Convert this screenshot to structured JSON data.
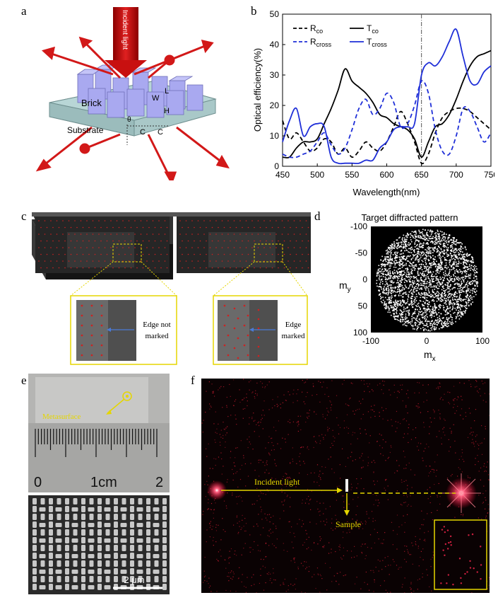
{
  "panels": {
    "a": {
      "label": "a",
      "incident": "Incident light",
      "brick": "Brick",
      "substrate": "Substrate",
      "dims": {
        "L": "L",
        "W": "W",
        "H": "H",
        "C1": "C",
        "C2": "C",
        "theta": "θ"
      }
    },
    "b": {
      "label": "b"
    },
    "c": {
      "label": "c",
      "left_note_line1": "Edge not",
      "left_note_line2": "marked",
      "right_note_line1": "Edge",
      "right_note_line2": "marked"
    },
    "d": {
      "label": "d",
      "title": "Target diffracted pattern",
      "xlabel_main": "m",
      "xlabel_sub": "x",
      "ylabel_main": "m",
      "ylabel_sub": "y",
      "yticks": [
        "-100",
        "-50",
        "0",
        "50",
        "100"
      ],
      "xticks": [
        "-100",
        "0",
        "100"
      ]
    },
    "e": {
      "label": "e",
      "metasurface": "Metasurface",
      "ruler_0": "0",
      "ruler_1": "1cm",
      "ruler_2": "2",
      "scalebar": "2 μm"
    },
    "f": {
      "label": "f",
      "incident": "Incident light",
      "sample": "Sample"
    }
  },
  "chart_data": {
    "type": "line",
    "xlabel": "Wavelength(nm)",
    "ylabel": "Optical efficiency(%)",
    "xlim": [
      450,
      750
    ],
    "ylim": [
      0,
      50
    ],
    "xticks": [
      450,
      500,
      550,
      600,
      650,
      700,
      750
    ],
    "yticks": [
      0,
      10,
      20,
      30,
      40,
      50
    ],
    "vline": 650,
    "series": [
      {
        "name": "R",
        "sub": "co",
        "color": "#000000",
        "dash": true,
        "x": [
          450,
          460,
          470,
          480,
          490,
          500,
          510,
          520,
          530,
          540,
          550,
          560,
          570,
          580,
          590,
          600,
          610,
          620,
          630,
          640,
          650,
          660,
          670,
          680,
          690,
          700,
          710,
          720,
          730,
          740,
          750
        ],
        "y": [
          15,
          9,
          11,
          8,
          5,
          6,
          9,
          8,
          4,
          6,
          3,
          5,
          8,
          6,
          5,
          8,
          13,
          18,
          14,
          8,
          1,
          4,
          11,
          16,
          18,
          19,
          19,
          18,
          16,
          14,
          12
        ]
      },
      {
        "name": "T",
        "sub": "co",
        "color": "#000000",
        "dash": false,
        "x": [
          450,
          460,
          470,
          480,
          490,
          500,
          510,
          520,
          530,
          540,
          550,
          560,
          570,
          580,
          590,
          600,
          610,
          620,
          630,
          640,
          650,
          660,
          670,
          680,
          690,
          700,
          710,
          720,
          730,
          740,
          750
        ],
        "y": [
          3,
          3,
          6,
          8,
          8,
          9,
          14,
          19,
          25,
          32,
          28,
          26,
          24,
          21,
          17,
          16,
          14,
          13,
          12,
          9,
          3,
          8,
          13,
          14,
          17,
          22,
          28,
          33,
          36,
          37,
          38
        ]
      },
      {
        "name": "R",
        "sub": "cross",
        "color": "#1f2fd8",
        "dash": true,
        "x": [
          450,
          460,
          470,
          480,
          490,
          500,
          510,
          520,
          530,
          540,
          550,
          560,
          570,
          580,
          590,
          600,
          610,
          620,
          630,
          640,
          650,
          660,
          670,
          680,
          690,
          700,
          710,
          720,
          730,
          740,
          750
        ],
        "y": [
          4,
          3,
          3,
          4,
          5,
          8,
          11,
          7,
          4,
          6,
          12,
          19,
          22,
          17,
          19,
          24,
          21,
          13,
          14,
          20,
          28,
          24,
          12,
          5,
          4,
          10,
          19,
          18,
          13,
          8,
          11
        ]
      },
      {
        "name": "T",
        "sub": "cross",
        "color": "#1f2fd8",
        "dash": false,
        "x": [
          450,
          460,
          470,
          480,
          490,
          500,
          510,
          520,
          530,
          540,
          550,
          560,
          570,
          580,
          590,
          600,
          610,
          620,
          630,
          640,
          650,
          660,
          670,
          680,
          690,
          700,
          710,
          720,
          730,
          740,
          750
        ],
        "y": [
          8,
          15,
          19,
          10,
          13,
          14,
          13,
          3,
          1,
          1,
          1,
          1,
          2,
          2,
          6,
          8,
          12,
          13,
          13,
          14,
          30,
          34,
          33,
          36,
          41,
          45,
          36,
          28,
          27,
          31,
          33
        ]
      }
    ]
  }
}
